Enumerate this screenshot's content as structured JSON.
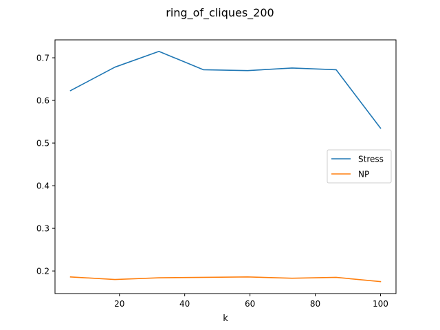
{
  "chart_data": {
    "type": "line",
    "title": "ring_of_cliques_200",
    "xlabel": "k",
    "ylabel": "",
    "xlim": [
      0.25,
      104.75
    ],
    "ylim": [
      0.147,
      0.742
    ],
    "xticks": [
      20,
      40,
      60,
      80,
      100
    ],
    "yticks": [
      0.2,
      0.3,
      0.4,
      0.5,
      0.6,
      0.7
    ],
    "xtick_labels": [
      "20",
      "40",
      "60",
      "80",
      "100"
    ],
    "ytick_labels": [
      "0.2",
      "0.3",
      "0.4",
      "0.5",
      "0.6",
      "0.7"
    ],
    "grid": false,
    "legend_position": "center-right",
    "x": [
      5,
      18.6,
      32.1,
      45.7,
      59.3,
      72.9,
      86.4,
      100
    ],
    "series": [
      {
        "name": "Stress",
        "color": "#1f77b4",
        "values": [
          0.623,
          0.678,
          0.715,
          0.672,
          0.67,
          0.676,
          0.672,
          0.535
        ]
      },
      {
        "name": "NP",
        "color": "#ff7f0e",
        "values": [
          0.186,
          0.18,
          0.184,
          0.185,
          0.186,
          0.183,
          0.185,
          0.175
        ]
      }
    ]
  }
}
